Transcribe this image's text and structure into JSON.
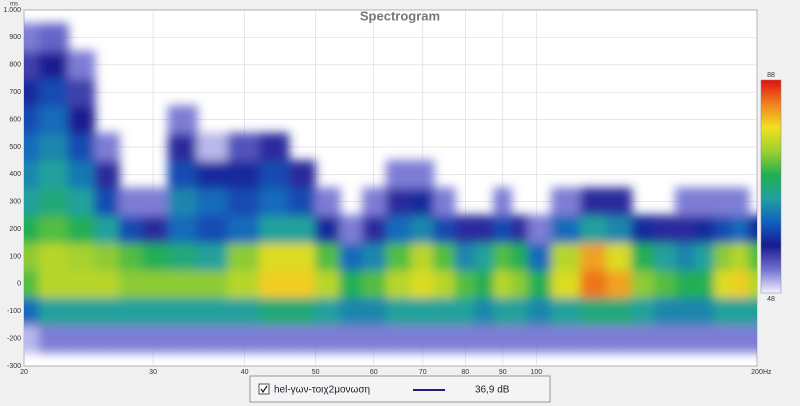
{
  "chart_data": {
    "type": "heatmap",
    "title": "Spectrogram",
    "y_unit": "ms",
    "x_unit": "Hz",
    "log_x": true,
    "grid": true,
    "xlim": [
      20,
      200
    ],
    "xticks": [
      20,
      30,
      40,
      50,
      60,
      70,
      80,
      90,
      100,
      200
    ],
    "ylim": [
      -300,
      1000
    ],
    "yticks": [
      -300,
      -200,
      -100,
      0,
      100,
      200,
      300,
      400,
      500,
      600,
      700,
      800,
      900,
      {
        "value": 1000,
        "label": "1.000"
      }
    ],
    "zlim": [
      48,
      88
    ],
    "zticks": [
      48,
      88
    ],
    "colors": [
      "#f2f2ff",
      "#7070d0",
      "#1a1a90",
      "#1060c0",
      "#20a0a0",
      "#20b050",
      "#a0d030",
      "#f0e020",
      "#f08020",
      "#e01010"
    ],
    "x": [
      20,
      22,
      24,
      26,
      28,
      30,
      33,
      36,
      40,
      44,
      48,
      52,
      56,
      60,
      65,
      70,
      75,
      80,
      85,
      90,
      95,
      100,
      110,
      120,
      130,
      140,
      150,
      160,
      170,
      180,
      190,
      200
    ],
    "y": [
      -200,
      -100,
      0,
      100,
      200,
      300,
      400,
      500,
      600,
      700,
      800,
      900
    ],
    "values": [
      [
        50,
        62,
        72,
        74,
        70,
        66,
        64,
        62,
        60,
        58,
        55,
        52
      ],
      [
        52,
        66,
        76,
        76,
        72,
        68,
        66,
        64,
        62,
        60,
        57,
        53
      ],
      [
        52,
        66,
        76,
        75,
        70,
        66,
        63,
        60,
        57,
        55,
        52,
        null
      ],
      [
        52,
        66,
        76,
        74,
        66,
        60,
        56,
        52,
        null,
        null,
        null,
        null
      ],
      [
        52,
        66,
        74,
        72,
        60,
        52,
        null,
        null,
        null,
        null,
        null,
        null
      ],
      [
        52,
        66,
        74,
        70,
        56,
        52,
        null,
        null,
        null,
        null,
        null,
        null
      ],
      [
        52,
        66,
        74,
        68,
        62,
        64,
        60,
        56,
        52,
        null,
        null,
        null
      ],
      [
        52,
        66,
        74,
        66,
        60,
        62,
        58,
        50,
        null,
        null,
        null,
        null
      ],
      [
        52,
        66,
        76,
        74,
        62,
        60,
        58,
        54,
        null,
        null,
        null,
        null
      ],
      [
        52,
        68,
        80,
        78,
        66,
        62,
        60,
        56,
        null,
        null,
        null,
        null
      ],
      [
        52,
        68,
        80,
        78,
        66,
        60,
        56,
        null,
        null,
        null,
        null,
        null
      ],
      [
        52,
        66,
        76,
        72,
        58,
        52,
        null,
        null,
        null,
        null,
        null,
        null
      ],
      [
        52,
        64,
        70,
        62,
        52,
        null,
        null,
        null,
        null,
        null,
        null,
        null
      ],
      [
        52,
        64,
        72,
        64,
        56,
        52,
        null,
        null,
        null,
        null,
        null,
        null
      ],
      [
        52,
        66,
        76,
        72,
        62,
        56,
        52,
        null,
        null,
        null,
        null,
        null
      ],
      [
        52,
        66,
        78,
        76,
        64,
        58,
        52,
        null,
        null,
        null,
        null,
        null
      ],
      [
        52,
        66,
        76,
        72,
        60,
        52,
        null,
        null,
        null,
        null,
        null,
        null
      ],
      [
        52,
        66,
        72,
        64,
        56,
        null,
        null,
        null,
        null,
        null,
        null,
        null
      ],
      [
        52,
        64,
        70,
        66,
        56,
        null,
        null,
        null,
        null,
        null,
        null,
        null
      ],
      [
        52,
        66,
        76,
        72,
        60,
        52,
        null,
        null,
        null,
        null,
        null,
        null
      ],
      [
        52,
        66,
        74,
        70,
        56,
        null,
        null,
        null,
        null,
        null,
        null,
        null
      ],
      [
        52,
        64,
        70,
        62,
        52,
        null,
        null,
        null,
        null,
        null,
        null,
        null
      ],
      [
        52,
        66,
        78,
        76,
        62,
        52,
        null,
        null,
        null,
        null,
        null,
        null
      ],
      [
        52,
        68,
        84,
        82,
        66,
        56,
        null,
        null,
        null,
        null,
        null,
        null
      ],
      [
        52,
        68,
        82,
        78,
        64,
        56,
        null,
        null,
        null,
        null,
        null,
        null
      ],
      [
        52,
        66,
        74,
        70,
        58,
        null,
        null,
        null,
        null,
        null,
        null,
        null
      ],
      [
        52,
        64,
        72,
        66,
        56,
        null,
        null,
        null,
        null,
        null,
        null,
        null
      ],
      [
        52,
        64,
        70,
        64,
        56,
        52,
        null,
        null,
        null,
        null,
        null,
        null
      ],
      [
        52,
        64,
        70,
        66,
        58,
        52,
        null,
        null,
        null,
        null,
        null,
        null
      ],
      [
        52,
        66,
        78,
        74,
        60,
        52,
        null,
        null,
        null,
        null,
        null,
        null
      ],
      [
        52,
        66,
        80,
        76,
        62,
        52,
        null,
        null,
        null,
        null,
        null,
        null
      ],
      [
        52,
        66,
        76,
        72,
        58,
        null,
        null,
        null,
        null,
        null,
        null,
        null
      ]
    ],
    "legend": {
      "name": "hel-γων-τοιχ2μονωση",
      "color": "#20207a",
      "value": 36.9,
      "value_label": "36,9 dB"
    }
  }
}
